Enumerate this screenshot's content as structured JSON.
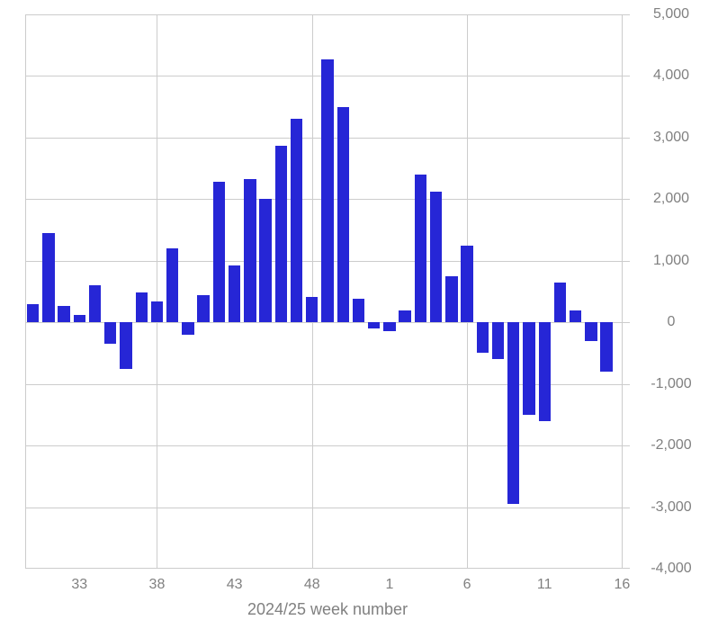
{
  "page": {
    "background": "#ffffff"
  },
  "chart_data": {
    "type": "bar",
    "title": "",
    "xlabel": "2024/25 week number",
    "ylabel": "",
    "ylim": [
      -4000,
      5000
    ],
    "y_tick_interval": 1000,
    "grid": true,
    "legend_position": "none",
    "bar_color": "#2626d6",
    "grid_color": "#cccccc",
    "axis_text_color": "#808080",
    "categories": [
      "30",
      "31",
      "32",
      "33",
      "34",
      "35",
      "36",
      "37",
      "38",
      "39",
      "40",
      "41",
      "42",
      "43",
      "44",
      "45",
      "46",
      "47",
      "48",
      "49",
      "50",
      "51",
      "52",
      "1",
      "2",
      "3",
      "4",
      "5",
      "6",
      "7",
      "8",
      "9",
      "10",
      "11",
      "12",
      "13",
      "14",
      "15",
      "16"
    ],
    "values": [
      300,
      1450,
      270,
      120,
      600,
      -350,
      -750,
      480,
      340,
      1200,
      -200,
      440,
      2280,
      920,
      2320,
      2000,
      2870,
      3300,
      410,
      4270,
      3500,
      380,
      -100,
      -150,
      200,
      2400,
      2120,
      750,
      1240,
      -500,
      -600,
      -2950,
      -1500,
      -1600,
      650,
      200,
      -300,
      -800,
      null
    ],
    "x_ticks": [
      {
        "label": "33",
        "index": 3
      },
      {
        "label": "38",
        "index": 8
      },
      {
        "label": "43",
        "index": 13
      },
      {
        "label": "48",
        "index": 18
      },
      {
        "label": "1",
        "index": 23
      },
      {
        "label": "6",
        "index": 28
      },
      {
        "label": "11",
        "index": 33
      },
      {
        "label": "16",
        "index": 38
      }
    ],
    "y_ticks": [
      {
        "label": "5,000",
        "value": 5000
      },
      {
        "label": "4,000",
        "value": 4000
      },
      {
        "label": "3,000",
        "value": 3000
      },
      {
        "label": "2,000",
        "value": 2000
      },
      {
        "label": "1,000",
        "value": 1000
      },
      {
        "label": "0",
        "value": 0
      },
      {
        "label": "-1,000",
        "value": -1000
      },
      {
        "label": "-2,000",
        "value": -2000
      },
      {
        "label": "-3,000",
        "value": -3000
      },
      {
        "label": "-4,000",
        "value": -4000
      }
    ],
    "v_gridline_indices": [
      8,
      18,
      28,
      38
    ]
  }
}
